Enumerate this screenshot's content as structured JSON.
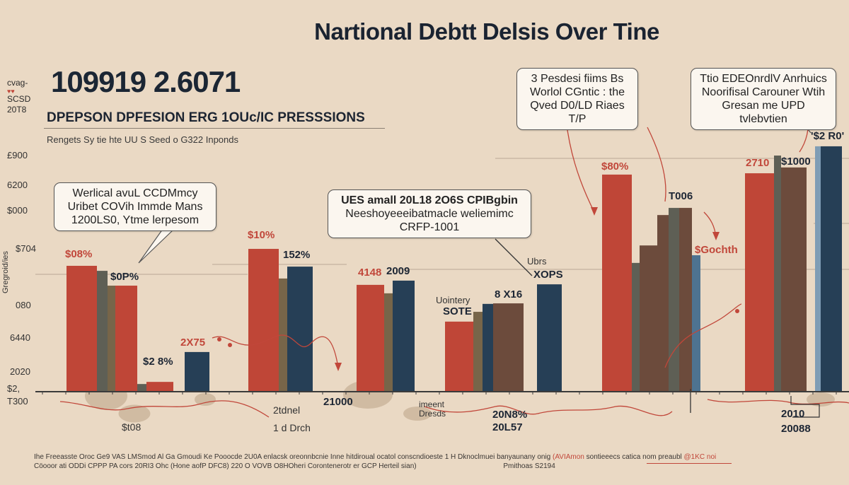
{
  "title": "Nartional Debtt Delsis Over Tine",
  "header": {
    "big_number": "109919 2.6071",
    "left_mini": [
      "cvag-",
      "SCSD",
      "20T8"
    ],
    "subtitle": "DPEPSON DPFESION ERG 1OUc/IC PRESSSIONS",
    "source_line": "Rengets Sy tie hte UU S Seed o G322 Inponds"
  },
  "y_axis": {
    "tick_labels": [
      "£900",
      "6200",
      "$000",
      "$704",
      "080",
      "6440",
      "2020",
      "$2,",
      "T300"
    ],
    "rotated_label": "Gregroid/ies"
  },
  "callouts": [
    {
      "id": "covid",
      "lines": [
        "Werlical avuL CCDMmcy",
        "Uribet COVih Immde Mans",
        "1200LS0, Ytme lerpesom"
      ]
    },
    {
      "id": "us-small",
      "lines": [
        "UES amall 20L18 2O6S CPIBgbin",
        "Neeshoyeeeibatmacle weliemimc",
        "CRFP-1001"
      ]
    },
    {
      "id": "world",
      "lines": [
        "3 Pesdesi fiims Bs",
        "Worlol CGntic : the",
        "Qved D0/LD Riaes T/P"
      ]
    },
    {
      "id": "edeon",
      "lines": [
        "Ttio EDEOnrdlV Anrhuics",
        "Noorifisal Carouner Wtih",
        "Gresan me UPD tvlebvtien"
      ]
    }
  ],
  "colors": {
    "background": "#ead9c4",
    "red": "#bf4637",
    "navy": "#263f56",
    "gray": "#5e5f55",
    "olive": "#776549",
    "brown": "#6c4b3c",
    "steel": "#4e7391",
    "light_blue": "#7f9db5",
    "text_dark": "#1c2533"
  },
  "footnote": {
    "line1_a": "Ihe Freeasste Oroc Ge9 VAS LMSmod Al Ga Gmoudi Ke Pooocde 2U0A enlacsk oreonnbcnie Inne hitdiroual ocatol conscndioeste 1 H Dknoclmuei banyaunany onig",
    "line1_highlight_a": "(AVIAmon",
    "line1_b": "sontieeecs catica nom preaubl",
    "line1_highlight_b": "@1KC noi",
    "line2": "Cöooor ati ODDi CPPP PA cors 20RI3 Ohc (Hone aofP DFC8) 220 O VOVB O8HOheri Corontenerotr er GCP Herteil sian)",
    "line2_right": "Pmithoas S2194"
  },
  "chart_data": {
    "type": "bar",
    "title": "Nartional Debtt Delsis Over Tine",
    "subtitle": "DPEPSON DPFESION ERG 1OUc/IC PRESSSIONS",
    "xlabel": "",
    "ylabel": "Gregroid/ies",
    "ylim": [
      0,
      100
    ],
    "y_units_note": "relative height, 0 = baseline, 100 = top of plot area (no readable scale)",
    "grid": true,
    "legend": "none",
    "groups": [
      {
        "name": "group-1",
        "bars": [
          {
            "color": "red",
            "value": 47.6
          },
          {
            "color": "gray",
            "value": 45.7
          },
          {
            "color": "olive",
            "value": 40.1
          },
          {
            "color": "red",
            "value": 40.1
          },
          {
            "color": "gray",
            "value": 2.9
          },
          {
            "color": "red",
            "value": 3.7
          },
          {
            "color": "navy",
            "value": 15.0
          }
        ]
      },
      {
        "name": "group-2",
        "bars": [
          {
            "color": "red",
            "value": 54.0
          },
          {
            "color": "olive",
            "value": 42.8
          },
          {
            "color": "navy",
            "value": 47.3
          }
        ]
      },
      {
        "name": "group-3",
        "bars": [
          {
            "color": "red",
            "value": 40.4
          },
          {
            "color": "olive",
            "value": 37.2
          },
          {
            "color": "navy",
            "value": 42.0
          }
        ]
      },
      {
        "name": "group-4",
        "bars": [
          {
            "color": "red",
            "value": 26.5
          },
          {
            "color": "olive",
            "value": 30.2
          },
          {
            "color": "navy",
            "value": 33.2
          },
          {
            "color": "brown",
            "value": 33.4
          },
          {
            "color": "navy",
            "value": 40.6
          }
        ]
      },
      {
        "name": "group-5",
        "bars": [
          {
            "color": "red",
            "value": 82.1
          },
          {
            "color": "gray",
            "value": 48.7
          },
          {
            "color": "brown",
            "value": 55.3
          },
          {
            "color": "brown",
            "value": 66.8
          },
          {
            "color": "gray",
            "value": 69.5
          },
          {
            "color": "brown",
            "value": 69.5
          },
          {
            "color": "steel",
            "value": 51.6
          }
        ]
      },
      {
        "name": "group-6",
        "bars": [
          {
            "color": "red",
            "value": 82.6
          },
          {
            "color": "gray",
            "value": 89.3
          },
          {
            "color": "brown",
            "value": 84.8
          },
          {
            "color": "light_blue",
            "value": 92.8
          },
          {
            "color": "navy",
            "value": 92.8
          }
        ]
      }
    ],
    "data_labels": [
      {
        "text": "$08%",
        "color": "red"
      },
      {
        "text": "$0P%",
        "color": "dark"
      },
      {
        "text": "$2 8%",
        "color": "dark"
      },
      {
        "text": "2X75",
        "color": "red"
      },
      {
        "text": "$10%",
        "color": "red"
      },
      {
        "text": "152%",
        "color": "dark"
      },
      {
        "text": "4148",
        "color": "red"
      },
      {
        "text": "2009",
        "color": "dark"
      },
      {
        "text": "Uointery",
        "color": "dark"
      },
      {
        "text": "SOTE",
        "color": "dark"
      },
      {
        "text": "8 X16",
        "color": "dark"
      },
      {
        "text": "Ubrs",
        "color": "dark"
      },
      {
        "text": "XOPS",
        "color": "dark"
      },
      {
        "text": "$80%",
        "color": "red"
      },
      {
        "text": "T006",
        "color": "dark"
      },
      {
        "text": "$Gochth",
        "color": "red"
      },
      {
        "text": "2710",
        "color": "red"
      },
      {
        "text": "$1000",
        "color": "dark"
      },
      {
        "text": "'$2 R0'",
        "color": "dark"
      }
    ],
    "x_labels": [
      "$t08",
      "2tdnel",
      "1 d Drch",
      "21000",
      "imeent",
      "Dresds",
      "20N8%",
      "20L57",
      "2010",
      "20088"
    ]
  }
}
